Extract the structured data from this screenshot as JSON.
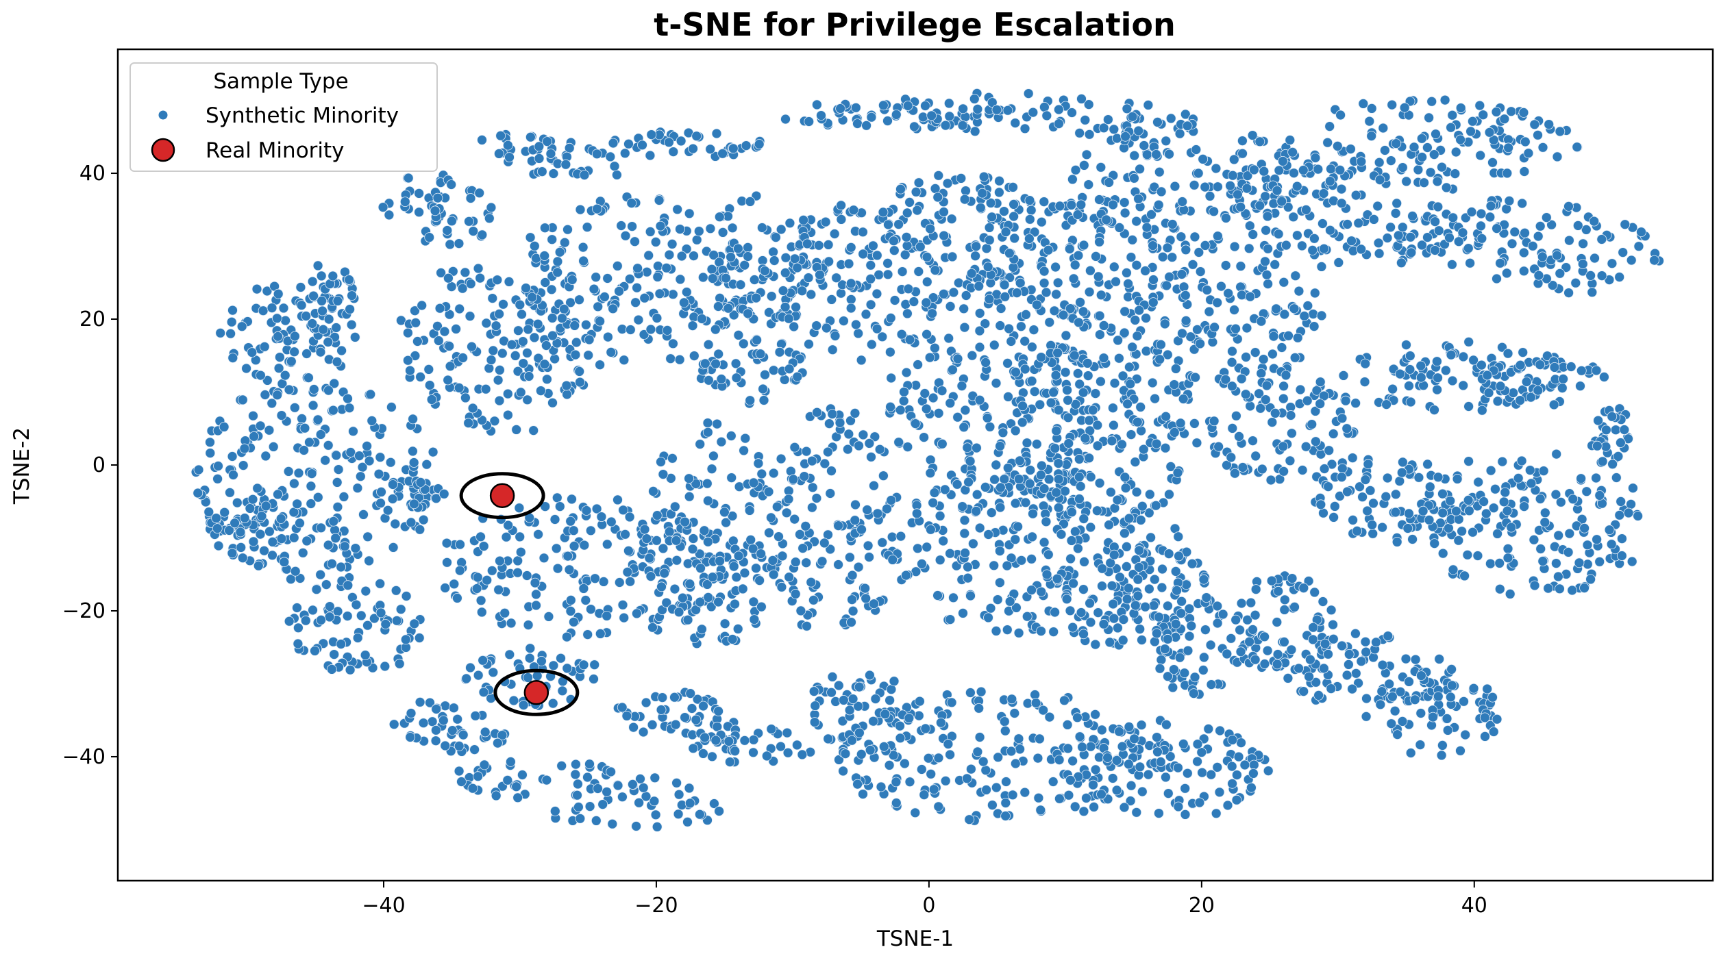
{
  "chart_data": {
    "type": "scatter",
    "title": "t-SNE for Privilege Escalation",
    "xlabel": "TSNE-1",
    "ylabel": "TSNE-2",
    "xlim": [
      -59.5,
      57.5
    ],
    "ylim": [
      -57,
      57
    ],
    "xticks": [
      -40,
      -20,
      0,
      20,
      40
    ],
    "yticks": [
      -40,
      -20,
      0,
      20,
      40
    ],
    "xtick_labels": [
      "−40",
      "−20",
      "0",
      "20",
      "40"
    ],
    "ytick_labels": [
      "−40",
      "−20",
      "0",
      "20",
      "40"
    ],
    "grid": false,
    "legend": {
      "title": "Sample Type",
      "placement": "top-left",
      "entries": [
        "Synthetic Minority",
        "Real Minority"
      ]
    },
    "series": [
      {
        "name": "Synthetic Minority",
        "color": "#2f7bba",
        "marker": "circle",
        "note_dense_regions_xy": [
          [
            -47,
            2
          ],
          [
            -43,
            -5
          ],
          [
            -36,
            18
          ],
          [
            -23,
            24
          ],
          [
            -12,
            28
          ],
          [
            -28,
            -14
          ],
          [
            -21,
            -28
          ],
          [
            -10,
            -6
          ],
          [
            -17,
            -10
          ],
          [
            -5,
            28
          ],
          [
            2,
            6
          ],
          [
            10,
            12
          ],
          [
            7,
            -10
          ],
          [
            20,
            36
          ],
          [
            32,
            30
          ],
          [
            25,
            8
          ],
          [
            36,
            10
          ],
          [
            43,
            -8
          ],
          [
            8,
            -40
          ],
          [
            20,
            -40
          ],
          [
            -23,
            -46
          ],
          [
            -27,
            43
          ],
          [
            -3,
            39
          ],
          [
            37,
            48
          ],
          [
            -44,
            -20
          ],
          [
            -38,
            -36
          ],
          [
            18,
            -22
          ],
          [
            34,
            -24
          ],
          [
            49,
            6
          ]
        ]
      },
      {
        "name": "Real Minority",
        "color": "#d62728",
        "marker": "circle",
        "points": [
          [
            -31.3,
            -4.2
          ],
          [
            -28.8,
            -31.2
          ]
        ],
        "highlighted": true
      }
    ]
  }
}
